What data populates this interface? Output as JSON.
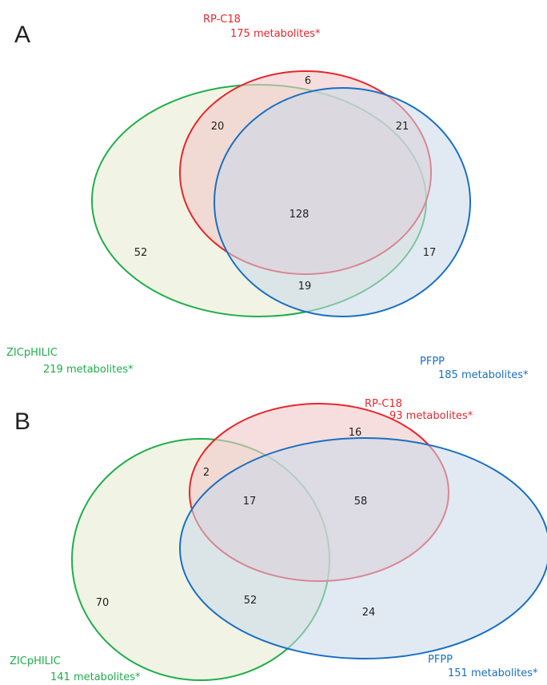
{
  "colors": {
    "red": "#e8262c",
    "green": "#1fae4b",
    "blue": "#1a6fc2",
    "red_fill": "#f2c8c8",
    "green_fill": "#eef2df",
    "blue_fill": "#c9d8ea"
  },
  "panel_a": {
    "letter": "A",
    "rp": {
      "name": "RP-C18",
      "count": "175 metabolites*"
    },
    "zic": {
      "name": "ZICpHILIC",
      "count": "219 metabolites*"
    },
    "pfpp": {
      "name": "PFPP",
      "count": "185 metabolites*"
    },
    "regions": {
      "rp_only": "6",
      "rp_zic": "20",
      "rp_pfpp": "21",
      "all_three": "128",
      "zic_only": "52",
      "pfpp_only": "17",
      "zic_pfpp": "19"
    }
  },
  "panel_b": {
    "letter": "B",
    "rp": {
      "name": "RP-C18",
      "count": "93 metabolites*"
    },
    "zic": {
      "name": "ZICpHILIC",
      "count": "141 metabolites*"
    },
    "pfpp": {
      "name": "PFPP",
      "count": "151 metabolites*"
    },
    "regions": {
      "rp_only": "16",
      "rp_zic": "2",
      "all_three": "17",
      "rp_pfpp": "58",
      "zic_only": "70",
      "zic_pfpp": "52",
      "pfpp_only": "24"
    }
  }
}
